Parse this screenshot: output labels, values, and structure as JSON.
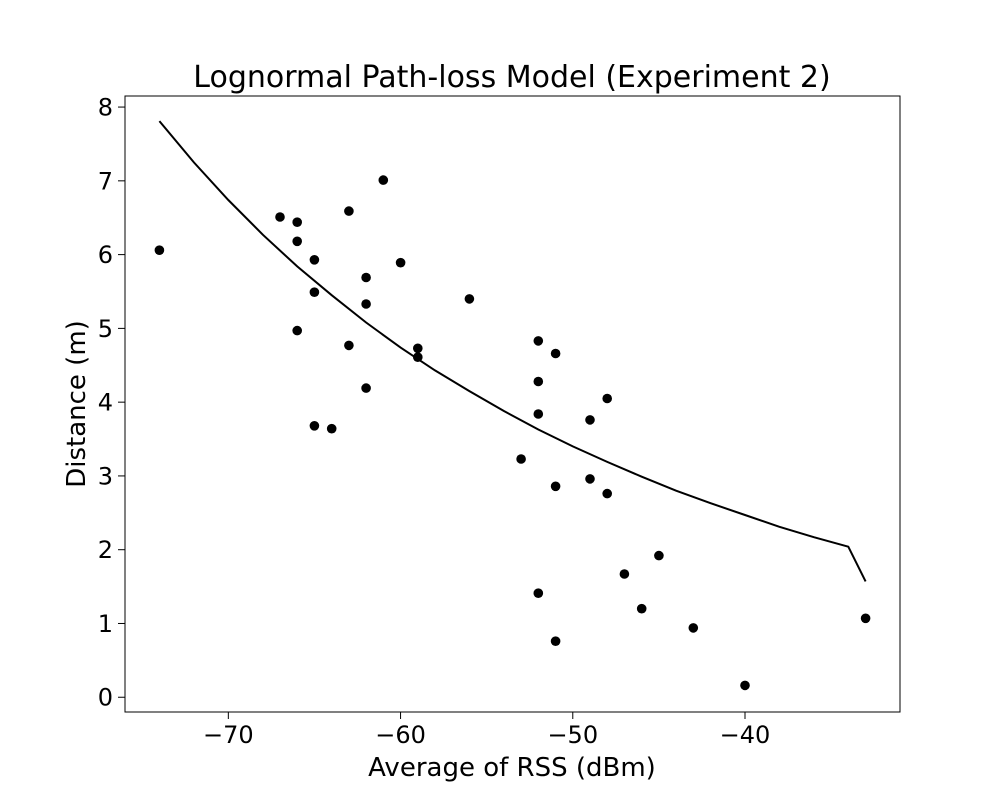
{
  "chart_data": {
    "type": "scatter",
    "title": "Lognormal Path-loss Model (Experiment 2)",
    "xlabel": "Average of RSS (dBm)",
    "ylabel": "Distance (m)",
    "xlim": [
      -76,
      -31
    ],
    "ylim": [
      -0.2,
      8.15
    ],
    "xticks": [
      -70,
      -60,
      -50,
      -40
    ],
    "xtick_labels": [
      "−70",
      "−60",
      "−50",
      "−40"
    ],
    "yticks": [
      0,
      1,
      2,
      3,
      4,
      5,
      6,
      7,
      8
    ],
    "ytick_labels": [
      "0",
      "1",
      "2",
      "3",
      "4",
      "5",
      "6",
      "7",
      "8"
    ],
    "grid": false,
    "marker_color": "#000000",
    "line_color": "#000000",
    "series": [
      {
        "kind": "points",
        "x": [
          -74,
          -67,
          -66,
          -66,
          -66,
          -65,
          -65,
          -65,
          -64,
          -63,
          -63,
          -62,
          -62,
          -62,
          -61,
          -60,
          -59,
          -59,
          -56,
          -53,
          -52,
          -52,
          -52,
          -52,
          -51,
          -51,
          -51,
          -49,
          -49,
          -48,
          -48,
          -47,
          -46,
          -45,
          -43,
          -40,
          -33
        ],
        "y": [
          6.06,
          6.51,
          6.44,
          6.18,
          4.97,
          5.93,
          5.49,
          3.68,
          3.64,
          6.59,
          4.77,
          5.69,
          5.33,
          4.19,
          7.01,
          5.89,
          4.73,
          4.61,
          5.4,
          3.23,
          4.83,
          4.28,
          3.84,
          1.41,
          4.66,
          2.86,
          0.76,
          3.76,
          2.96,
          4.05,
          2.76,
          1.67,
          1.2,
          1.92,
          0.94,
          0.16,
          1.07
        ]
      },
      {
        "kind": "curve",
        "x": [
          -74,
          -72,
          -70,
          -68,
          -66,
          -64,
          -62,
          -60,
          -58,
          -56,
          -54,
          -52,
          -50,
          -48,
          -46,
          -44,
          -42,
          -40,
          -38,
          -36,
          -34,
          -33
        ],
        "y": [
          7.81,
          7.25,
          6.74,
          6.27,
          5.84,
          5.45,
          5.08,
          4.74,
          4.43,
          4.15,
          3.88,
          3.63,
          3.4,
          3.19,
          2.99,
          2.8,
          2.63,
          2.47,
          2.31,
          2.17,
          2.04,
          1.57
        ]
      }
    ]
  }
}
